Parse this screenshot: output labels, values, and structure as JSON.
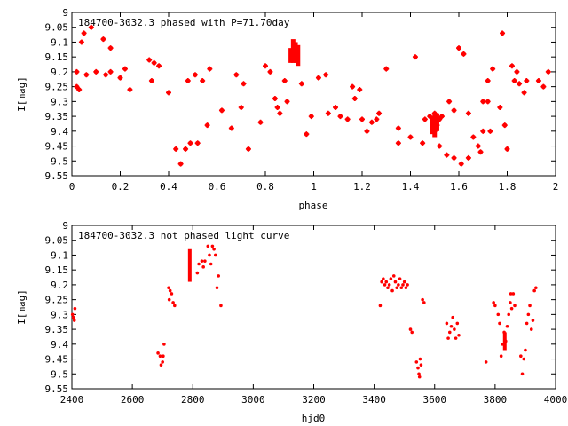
{
  "chart_data": [
    {
      "type": "scatter",
      "title": "184700-3032.3 phased with P=71.70day",
      "xlabel": "phase",
      "ylabel": "I[mag]",
      "xlim": [
        0,
        2
      ],
      "ylim": [
        9,
        9.55
      ],
      "y_inverted": true,
      "grid": false,
      "xticks": [
        "0",
        "0.2",
        "0.4",
        "0.6",
        "0.8",
        "1",
        "1.2",
        "1.4",
        "1.6",
        "1.8",
        "2"
      ],
      "yticks": [
        "9",
        "9.05",
        "9.1",
        "9.15",
        "9.2",
        "9.25",
        "9.3",
        "9.35",
        "9.4",
        "9.45",
        "9.5",
        "9.55"
      ],
      "marker_color": "#ff0000",
      "points": [
        [
          0.02,
          9.2
        ],
        [
          0.02,
          9.25
        ],
        [
          0.03,
          9.26
        ],
        [
          0.04,
          9.1
        ],
        [
          0.05,
          9.07
        ],
        [
          0.06,
          9.21
        ],
        [
          0.08,
          9.05
        ],
        [
          0.1,
          9.2
        ],
        [
          0.13,
          9.09
        ],
        [
          0.14,
          9.21
        ],
        [
          0.16,
          9.2
        ],
        [
          0.16,
          9.12
        ],
        [
          0.2,
          9.22
        ],
        [
          0.22,
          9.19
        ],
        [
          0.24,
          9.26
        ],
        [
          0.32,
          9.16
        ],
        [
          0.33,
          9.23
        ],
        [
          0.34,
          9.17
        ],
        [
          0.36,
          9.18
        ],
        [
          0.4,
          9.27
        ],
        [
          0.43,
          9.46
        ],
        [
          0.45,
          9.51
        ],
        [
          0.47,
          9.46
        ],
        [
          0.48,
          9.23
        ],
        [
          0.49,
          9.44
        ],
        [
          0.51,
          9.21
        ],
        [
          0.52,
          9.44
        ],
        [
          0.54,
          9.23
        ],
        [
          0.56,
          9.38
        ],
        [
          0.57,
          9.19
        ],
        [
          0.62,
          9.33
        ],
        [
          0.66,
          9.39
        ],
        [
          0.68,
          9.21
        ],
        [
          0.7,
          9.32
        ],
        [
          0.71,
          9.24
        ],
        [
          0.73,
          9.46
        ],
        [
          0.78,
          9.37
        ],
        [
          0.8,
          9.18
        ],
        [
          0.82,
          9.2
        ],
        [
          0.84,
          9.29
        ],
        [
          0.85,
          9.32
        ],
        [
          0.86,
          9.34
        ],
        [
          0.88,
          9.23
        ],
        [
          0.89,
          9.3
        ],
        [
          0.95,
          9.24
        ],
        [
          0.97,
          9.41
        ],
        [
          0.99,
          9.35
        ],
        [
          1.02,
          9.22
        ],
        [
          1.05,
          9.21
        ],
        [
          1.06,
          9.34
        ],
        [
          1.09,
          9.32
        ],
        [
          1.11,
          9.35
        ],
        [
          1.14,
          9.36
        ],
        [
          1.16,
          9.25
        ],
        [
          1.17,
          9.29
        ],
        [
          1.19,
          9.26
        ],
        [
          1.2,
          9.36
        ],
        [
          1.22,
          9.4
        ],
        [
          1.24,
          9.37
        ],
        [
          1.26,
          9.36
        ],
        [
          1.27,
          9.34
        ],
        [
          1.3,
          9.19
        ],
        [
          1.35,
          9.39
        ],
        [
          1.35,
          9.44
        ],
        [
          1.4,
          9.42
        ],
        [
          1.42,
          9.15
        ],
        [
          1.45,
          9.44
        ],
        [
          1.46,
          9.36
        ],
        [
          1.5,
          9.4
        ],
        [
          1.52,
          9.45
        ],
        [
          1.55,
          9.48
        ],
        [
          1.56,
          9.3
        ],
        [
          1.58,
          9.49
        ],
        [
          1.58,
          9.33
        ],
        [
          1.6,
          9.12
        ],
        [
          1.61,
          9.51
        ],
        [
          1.62,
          9.14
        ],
        [
          1.64,
          9.49
        ],
        [
          1.64,
          9.34
        ],
        [
          1.66,
          9.42
        ],
        [
          1.68,
          9.45
        ],
        [
          1.69,
          9.47
        ],
        [
          1.7,
          9.3
        ],
        [
          1.7,
          9.4
        ],
        [
          1.72,
          9.3
        ],
        [
          1.72,
          9.23
        ],
        [
          1.73,
          9.4
        ],
        [
          1.74,
          9.19
        ],
        [
          1.77,
          9.32
        ],
        [
          1.78,
          9.07
        ],
        [
          1.79,
          9.38
        ],
        [
          1.8,
          9.46
        ],
        [
          1.82,
          9.18
        ],
        [
          1.83,
          9.23
        ],
        [
          1.84,
          9.2
        ],
        [
          1.85,
          9.24
        ],
        [
          1.87,
          9.27
        ],
        [
          1.88,
          9.23
        ],
        [
          1.93,
          9.23
        ],
        [
          1.95,
          9.25
        ],
        [
          1.97,
          9.2
        ],
        [
          1.48,
          9.35
        ],
        [
          1.49,
          9.37
        ],
        [
          1.5,
          9.34
        ],
        [
          1.51,
          9.38
        ],
        [
          1.52,
          9.36
        ],
        [
          1.53,
          9.35
        ],
        [
          1.49,
          9.39
        ]
      ],
      "dense_segments": [
        {
          "x": 0.905,
          "y_from": 9.12,
          "y_to": 9.17
        },
        {
          "x": 0.915,
          "y_from": 9.09,
          "y_to": 9.17
        },
        {
          "x": 0.925,
          "y_from": 9.1,
          "y_to": 9.17
        },
        {
          "x": 0.935,
          "y_from": 9.11,
          "y_to": 9.18
        },
        {
          "x": 1.49,
          "y_from": 9.35,
          "y_to": 9.41
        },
        {
          "x": 1.5,
          "y_from": 9.34,
          "y_to": 9.42
        },
        {
          "x": 1.51,
          "y_from": 9.34,
          "y_to": 9.4
        }
      ]
    },
    {
      "type": "scatter",
      "title": "184700-3032.3 not phased light curve",
      "xlabel": "hjd0",
      "ylabel": "I[mag]",
      "xlim": [
        2400,
        4000
      ],
      "ylim": [
        9,
        9.55
      ],
      "y_inverted": true,
      "grid": false,
      "xticks": [
        "2400",
        "2600",
        "2800",
        "3000",
        "3200",
        "3400",
        "3600",
        "3800",
        "4000"
      ],
      "yticks": [
        "9",
        "9.05",
        "9.1",
        "9.15",
        "9.2",
        "9.25",
        "9.3",
        "9.35",
        "9.4",
        "9.45",
        "9.5",
        "9.55"
      ],
      "marker_color": "#ff0000",
      "points": [
        [
          2402,
          9.3
        ],
        [
          2405,
          9.31
        ],
        [
          2408,
          9.32
        ],
        [
          2410,
          9.28
        ],
        [
          2685,
          9.43
        ],
        [
          2692,
          9.44
        ],
        [
          2695,
          9.47
        ],
        [
          2700,
          9.46
        ],
        [
          2702,
          9.44
        ],
        [
          2705,
          9.4
        ],
        [
          2720,
          9.21
        ],
        [
          2722,
          9.25
        ],
        [
          2725,
          9.22
        ],
        [
          2730,
          9.23
        ],
        [
          2735,
          9.26
        ],
        [
          2740,
          9.27
        ],
        [
          2815,
          9.16
        ],
        [
          2820,
          9.13
        ],
        [
          2830,
          9.12
        ],
        [
          2835,
          9.14
        ],
        [
          2840,
          9.12
        ],
        [
          2850,
          9.07
        ],
        [
          2855,
          9.1
        ],
        [
          2860,
          9.13
        ],
        [
          2865,
          9.07
        ],
        [
          2870,
          9.08
        ],
        [
          2875,
          9.1
        ],
        [
          2880,
          9.21
        ],
        [
          2885,
          9.17
        ],
        [
          2893,
          9.27
        ],
        [
          3420,
          9.27
        ],
        [
          3425,
          9.19
        ],
        [
          3430,
          9.18
        ],
        [
          3435,
          9.2
        ],
        [
          3440,
          9.19
        ],
        [
          3445,
          9.21
        ],
        [
          3450,
          9.2
        ],
        [
          3455,
          9.18
        ],
        [
          3460,
          9.22
        ],
        [
          3465,
          9.17
        ],
        [
          3470,
          9.19
        ],
        [
          3475,
          9.21
        ],
        [
          3480,
          9.2
        ],
        [
          3485,
          9.18
        ],
        [
          3490,
          9.21
        ],
        [
          3495,
          9.2
        ],
        [
          3500,
          9.19
        ],
        [
          3505,
          9.21
        ],
        [
          3510,
          9.2
        ],
        [
          3520,
          9.35
        ],
        [
          3525,
          9.36
        ],
        [
          3540,
          9.46
        ],
        [
          3545,
          9.48
        ],
        [
          3548,
          9.5
        ],
        [
          3550,
          9.51
        ],
        [
          3552,
          9.45
        ],
        [
          3555,
          9.47
        ],
        [
          3560,
          9.25
        ],
        [
          3565,
          9.26
        ],
        [
          3640,
          9.33
        ],
        [
          3645,
          9.38
        ],
        [
          3650,
          9.36
        ],
        [
          3655,
          9.34
        ],
        [
          3660,
          9.31
        ],
        [
          3665,
          9.35
        ],
        [
          3670,
          9.38
        ],
        [
          3675,
          9.33
        ],
        [
          3680,
          9.37
        ],
        [
          3770,
          9.46
        ],
        [
          3795,
          9.26
        ],
        [
          3800,
          9.27
        ],
        [
          3810,
          9.3
        ],
        [
          3815,
          9.33
        ],
        [
          3820,
          9.44
        ],
        [
          3825,
          9.4
        ],
        [
          3830,
          9.36
        ],
        [
          3835,
          9.39
        ],
        [
          3840,
          9.34
        ],
        [
          3845,
          9.3
        ],
        [
          3850,
          9.26
        ],
        [
          3852,
          9.23
        ],
        [
          3855,
          9.28
        ],
        [
          3860,
          9.23
        ],
        [
          3865,
          9.27
        ],
        [
          3885,
          9.44
        ],
        [
          3890,
          9.5
        ],
        [
          3895,
          9.45
        ],
        [
          3900,
          9.42
        ],
        [
          3905,
          9.33
        ],
        [
          3910,
          9.3
        ],
        [
          3915,
          9.27
        ],
        [
          3920,
          9.35
        ],
        [
          3925,
          9.32
        ],
        [
          3930,
          9.22
        ],
        [
          3935,
          9.21
        ]
      ],
      "dense_segments": [
        {
          "x": 2790,
          "y_from": 9.08,
          "y_to": 9.19
        },
        {
          "x": 3832,
          "y_from": 9.36,
          "y_to": 9.42
        }
      ]
    }
  ]
}
